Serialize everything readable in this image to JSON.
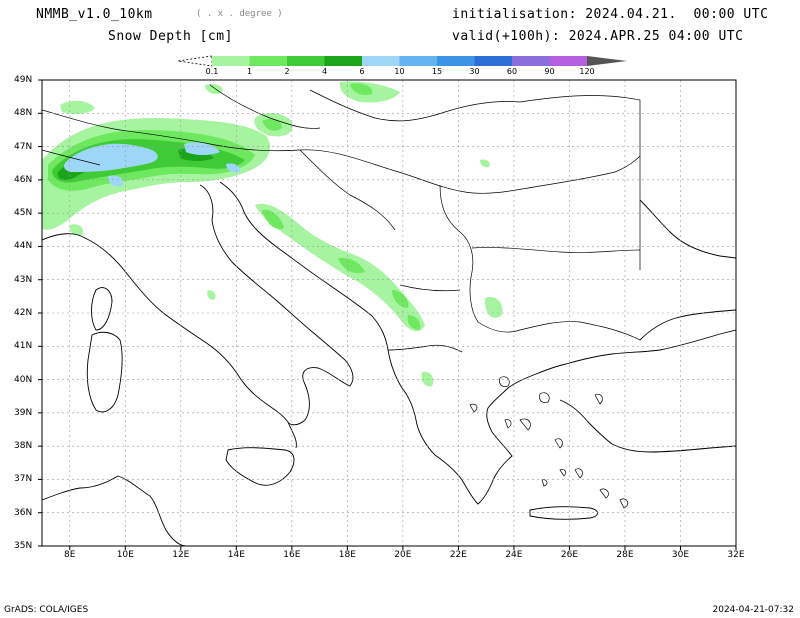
{
  "header": {
    "model": "NMMB_v1.0_10km",
    "resolution_note": "( . x . degree )",
    "variable": "Snow Depth [cm]",
    "init_label": "initialisation: 2024.04.21.  00:00 UTC",
    "valid_label": "valid(+100h): 2024.APR.25 04:00 UTC"
  },
  "legend": {
    "ticks": [
      "0.1",
      "1",
      "2",
      "4",
      "6",
      "10",
      "15",
      "30",
      "60",
      "90",
      "120"
    ],
    "colors": [
      "#a6f4a0",
      "#6ee85f",
      "#3ecb35",
      "#1ca51b",
      "#9ed6f7",
      "#63b4f0",
      "#3c94e6",
      "#2b6fd6",
      "#8a6fdc",
      "#b45fe0",
      "#555555"
    ]
  },
  "axes": {
    "x_labels": [
      "8E",
      "10E",
      "12E",
      "14E",
      "16E",
      "18E",
      "20E",
      "22E",
      "24E",
      "26E",
      "28E",
      "30E",
      "32E"
    ],
    "y_labels": [
      "49N",
      "48N",
      "47N",
      "46N",
      "45N",
      "44N",
      "43N",
      "42N",
      "41N",
      "40N",
      "39N",
      "38N",
      "37N",
      "36N",
      "35N"
    ],
    "lon_range": [
      7,
      32
    ],
    "lat_range": [
      35,
      49
    ]
  },
  "footer": {
    "credit": "GrADS: COLA/IGES",
    "timestamp": "2024-04-21-07:32"
  }
}
